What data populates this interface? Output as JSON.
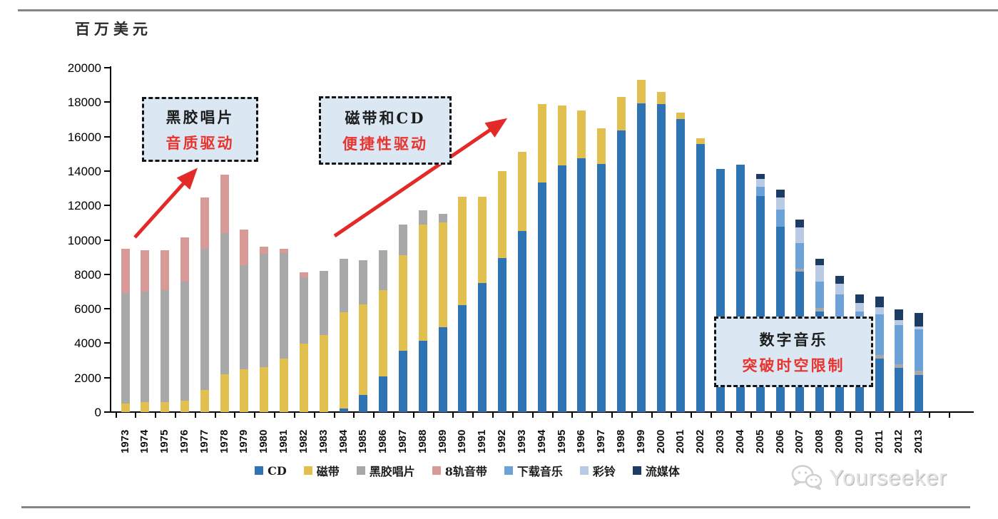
{
  "header": {
    "unit_label": "百万美元"
  },
  "watermark": {
    "text": "Yourseeker",
    "icon": "wechat-icon"
  },
  "annotations": [
    {
      "line1": "黑胶唱片",
      "line2": "音质驱动"
    },
    {
      "line1": "磁带和CD",
      "line2": "便捷性驱动"
    },
    {
      "line1": "数字音乐",
      "line2": "突破时空限制"
    }
  ],
  "colors": {
    "arrow_red": "#e32a28",
    "annotation_bg": "#dbe7f3",
    "annotation_red_text": "#e8342e",
    "axis_black": "#000000",
    "rule_gray": "#858585",
    "watermark_gray": "#e3e3e3"
  },
  "chart_data": {
    "type": "bar",
    "stacked": true,
    "title": "",
    "ylabel": "百万美元",
    "xlabel": "",
    "grid": false,
    "legend_position": "bottom",
    "y_axis": {
      "min": 0,
      "max": 20000,
      "step": 2000
    },
    "categories": [
      1973,
      1974,
      1975,
      1976,
      1977,
      1978,
      1979,
      1980,
      1981,
      1982,
      1983,
      1984,
      1985,
      1986,
      1987,
      1988,
      1989,
      1990,
      1991,
      1992,
      1993,
      1994,
      1995,
      1996,
      1997,
      1998,
      1999,
      2000,
      2001,
      2002,
      2003,
      2004,
      2005,
      2006,
      2007,
      2008,
      2009,
      2010,
      2011,
      2012,
      2013
    ],
    "series": [
      {
        "name": "CD",
        "color": "#2e74b5",
        "values": [
          0,
          0,
          0,
          0,
          0,
          0,
          0,
          0,
          0,
          0,
          0,
          200,
          1000,
          2060,
          3570,
          4130,
          4930,
          6220,
          7480,
          8930,
          10500,
          13340,
          14340,
          14730,
          14410,
          16340,
          17930,
          17890,
          17000,
          15580,
          14100,
          14350,
          12550,
          10750,
          8150,
          5850,
          5160,
          3200,
          3100,
          2550,
          2150
        ]
      },
      {
        "name": "磁带",
        "color": "#e2c04f",
        "values": [
          500,
          580,
          580,
          680,
          1300,
          2200,
          2470,
          2600,
          3090,
          3990,
          4470,
          5600,
          5270,
          5030,
          5520,
          6760,
          6100,
          6280,
          5020,
          5070,
          4600,
          4560,
          3460,
          2770,
          2090,
          1960,
          1370,
          710,
          400,
          320,
          0,
          0,
          0,
          0,
          0,
          0,
          0,
          0,
          0,
          0,
          0
        ]
      },
      {
        "name": "黑胶唱片",
        "color": "#a8a8a8",
        "values": [
          6400,
          6400,
          6500,
          6900,
          8200,
          8200,
          6060,
          6600,
          6160,
          3830,
          3730,
          3100,
          2530,
          2310,
          1810,
          810,
          470,
          0,
          0,
          0,
          0,
          0,
          0,
          0,
          0,
          0,
          0,
          0,
          0,
          0,
          0,
          0,
          0,
          0,
          180,
          210,
          210,
          150,
          210,
          230,
          240
        ]
      },
      {
        "name": "8轨音带",
        "color": "#d79a96",
        "values": [
          2600,
          2420,
          2320,
          2570,
          2950,
          3400,
          2070,
          400,
          250,
          280,
          0,
          0,
          0,
          0,
          0,
          0,
          0,
          0,
          0,
          0,
          0,
          0,
          0,
          0,
          0,
          0,
          0,
          0,
          0,
          0,
          0,
          0,
          0,
          0,
          0,
          0,
          0,
          0,
          0,
          0,
          0
        ]
      },
      {
        "name": "下载音乐",
        "color": "#6da2d9",
        "values": [
          0,
          0,
          0,
          0,
          0,
          0,
          0,
          0,
          0,
          0,
          0,
          0,
          0,
          0,
          0,
          0,
          0,
          0,
          0,
          0,
          0,
          0,
          0,
          0,
          0,
          0,
          0,
          0,
          0,
          0,
          0,
          0,
          550,
          1010,
          1480,
          1520,
          1450,
          2500,
          2350,
          2280,
          2400
        ]
      },
      {
        "name": "彩铃",
        "color": "#b9cbe4",
        "values": [
          0,
          0,
          0,
          0,
          0,
          0,
          0,
          0,
          0,
          0,
          0,
          0,
          0,
          0,
          0,
          0,
          0,
          0,
          0,
          0,
          0,
          0,
          0,
          0,
          0,
          0,
          0,
          0,
          0,
          0,
          0,
          0,
          450,
          720,
          900,
          940,
          620,
          500,
          430,
          280,
          160
        ]
      },
      {
        "name": "流媒体",
        "color": "#1c3c63",
        "values": [
          0,
          0,
          0,
          0,
          0,
          0,
          0,
          0,
          0,
          0,
          0,
          0,
          0,
          0,
          0,
          0,
          0,
          0,
          0,
          0,
          0,
          0,
          0,
          0,
          0,
          0,
          0,
          0,
          0,
          0,
          0,
          0,
          300,
          450,
          490,
          380,
          460,
          480,
          620,
          610,
          800
        ]
      }
    ]
  }
}
